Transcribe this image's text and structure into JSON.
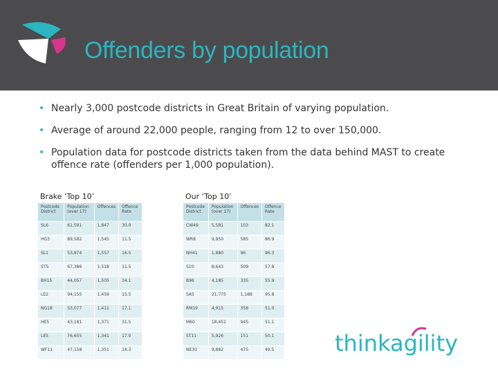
{
  "header": {
    "title": "Offenders by population",
    "colors": {
      "accent": "#2bb5c0",
      "magenta": "#d6358c",
      "bar": "#4b4b4d"
    }
  },
  "bullets": [
    {
      "text": "Nearly 3,000 postcode districts in Great Britain of varying population."
    },
    {
      "text": "Average of around 22,000 people, ranging from 12 to over 150,000."
    },
    {
      "text": "Population data for postcode districts taken from the data behind MAST to create offence rate (offenders per 1,000 population)."
    }
  ],
  "left_table": {
    "caption": "Brake ‘Top 10’",
    "headers": [
      "Postcode District",
      "Population (over 17)",
      "Offences",
      "Offence Rate"
    ],
    "rows": [
      [
        "SL6",
        "61,591",
        "1,847",
        "30.0"
      ],
      [
        "HG3",
        "89,582",
        "1,545",
        "11.5"
      ],
      [
        "SL1",
        "53,874",
        "1,557",
        "16.5"
      ],
      [
        "ST5",
        "67,386",
        "1,518",
        "11.5"
      ],
      [
        "BH15",
        "44,057",
        "1,505",
        "34.1"
      ],
      [
        "LE2",
        "94,155",
        "1,459",
        "15.5"
      ],
      [
        "NG18",
        "53,077",
        "1,411",
        "17.1"
      ],
      [
        "HE5",
        "43,181",
        "1,371",
        "31.5"
      ],
      [
        "LE5",
        "76,655",
        "1,341",
        "17.0"
      ],
      [
        "WF11",
        "47,158",
        "1,351",
        "16.3"
      ]
    ]
  },
  "right_table": {
    "caption": "Our ‘Top 10’",
    "headers": [
      "Postcode District",
      "Population (over 17)",
      "Offences",
      "Offence Rate"
    ],
    "rows": [
      [
        "CW49",
        "5,581",
        "103",
        "82.1"
      ],
      [
        "WR8",
        "9,950",
        "585",
        "86.9"
      ],
      [
        "NH41",
        "1,880",
        "96",
        "96.3"
      ],
      [
        "S10",
        "8,643",
        "509",
        "57.8"
      ],
      [
        "B96",
        "4,185",
        "335",
        "55.9"
      ],
      [
        "SA5",
        "21,775",
        "1,188",
        "95.8"
      ],
      [
        "RM19",
        "4,915",
        "358",
        "51.0"
      ],
      [
        "M60",
        "18,451",
        "945",
        "51.1"
      ],
      [
        "ST11",
        "5,926",
        "151",
        "50.1"
      ],
      [
        "NE30",
        "9,882",
        "475",
        "49.5"
      ]
    ]
  },
  "footer": {
    "logo_text": "thinkagility"
  }
}
